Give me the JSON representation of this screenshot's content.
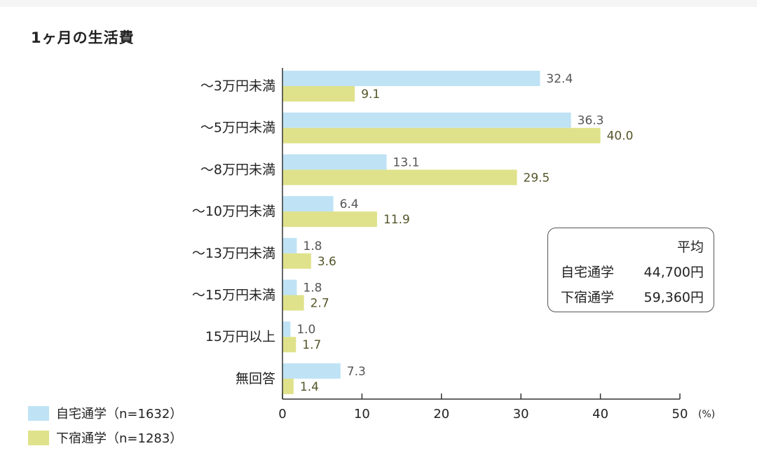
{
  "title": "1ヶ月の生活費",
  "colors": {
    "home": "#bfe3f5",
    "boarding": "#dfe28a",
    "home_label": "#555555",
    "boarding_label": "#55552a"
  },
  "average_box": {
    "heading": "平均",
    "rows": [
      {
        "label": "自宅通学",
        "value": "44,700円"
      },
      {
        "label": "下宿通学",
        "value": "59,360円"
      }
    ]
  },
  "legend": [
    {
      "label": "自宅通学（n=1632）"
    },
    {
      "label": "下宿通学（n=1283）"
    }
  ],
  "chart_data": {
    "type": "bar",
    "orientation": "horizontal",
    "title": "1ヶ月の生活費",
    "categories": [
      "～3万円未満",
      "～5万円未満",
      "～8万円未満",
      "～10万円未満",
      "～13万円未満",
      "～15万円未満",
      "15万円以上",
      "無回答"
    ],
    "series": [
      {
        "name": "自宅通学（n=1632）",
        "values": [
          32.4,
          36.3,
          13.1,
          6.4,
          1.8,
          1.8,
          1.0,
          7.3
        ]
      },
      {
        "name": "下宿通学（n=1283）",
        "values": [
          9.1,
          40.0,
          29.5,
          11.9,
          3.6,
          2.7,
          1.7,
          1.4
        ]
      }
    ],
    "value_labels": [
      [
        "32.4",
        "36.3",
        "13.1",
        "6.4",
        "1.8",
        "1.8",
        "1.0",
        "7.3"
      ],
      [
        "9.1",
        "40.0",
        "29.5",
        "11.9",
        "3.6",
        "2.7",
        "1.7",
        "1.4"
      ]
    ],
    "xlim": [
      0,
      50
    ],
    "xticks": [
      "0",
      "10",
      "20",
      "30",
      "40",
      "50"
    ],
    "xunit": "(%)",
    "legend_position": "bottom-left"
  }
}
